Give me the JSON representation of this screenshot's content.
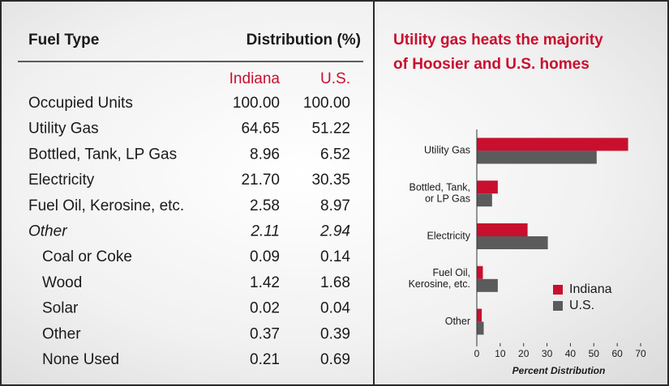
{
  "table": {
    "header": [
      "Fuel Type",
      "Distribution (%)"
    ],
    "columns": [
      "Indiana",
      "U.S."
    ],
    "rows": [
      {
        "cells": [
          "Occupied Units",
          "100.00",
          "100.00"
        ]
      },
      {
        "cells": [
          "Utility Gas",
          "64.65",
          "51.22"
        ]
      },
      {
        "cells": [
          "Bottled, Tank, LP Gas",
          "8.96",
          "6.52"
        ]
      },
      {
        "cells": [
          "Electricity",
          "21.70",
          "30.35"
        ]
      },
      {
        "cells": [
          "Fuel Oil, Kerosine, etc.",
          "2.58",
          "8.97"
        ]
      },
      {
        "cells": [
          "Other",
          "2.11",
          "2.94"
        ],
        "italic": true
      },
      {
        "cells": [
          "Coal or Coke",
          "0.09",
          "0.14"
        ],
        "level": 1
      },
      {
        "cells": [
          "Wood",
          "1.42",
          "1.68"
        ],
        "level": 1
      },
      {
        "cells": [
          "Solar",
          "0.02",
          "0.04"
        ],
        "level": 1
      },
      {
        "cells": [
          "Other",
          "0.37",
          "0.39"
        ],
        "level": 1
      },
      {
        "cells": [
          "None Used",
          "0.21",
          "0.69"
        ],
        "level": 1
      }
    ],
    "accent_color": "#c8102e"
  },
  "chart_data": {
    "type": "hbar",
    "title": [
      "Utility gas heats the majority",
      "of Hoosier and U.S. homes"
    ],
    "categories": [
      [
        "Utility Gas"
      ],
      [
        "Bottled, Tank,",
        "or LP Gas"
      ],
      [
        "Electricity"
      ],
      [
        "Fuel Oil,",
        "Kerosine, etc."
      ],
      [
        "Other"
      ]
    ],
    "series": [
      {
        "name": "Indiana",
        "color": "#c8102e",
        "values": [
          64.65,
          8.96,
          21.7,
          2.58,
          2.11
        ]
      },
      {
        "name": "U.S.",
        "color": "#5b5b5b",
        "values": [
          51.22,
          6.52,
          30.35,
          8.97,
          2.94
        ]
      }
    ],
    "xlim": [
      0,
      70
    ],
    "xticks": [
      0,
      10,
      20,
      30,
      40,
      50,
      60,
      70
    ],
    "xlabel": "Percent Distribution",
    "legend": "lower right"
  }
}
